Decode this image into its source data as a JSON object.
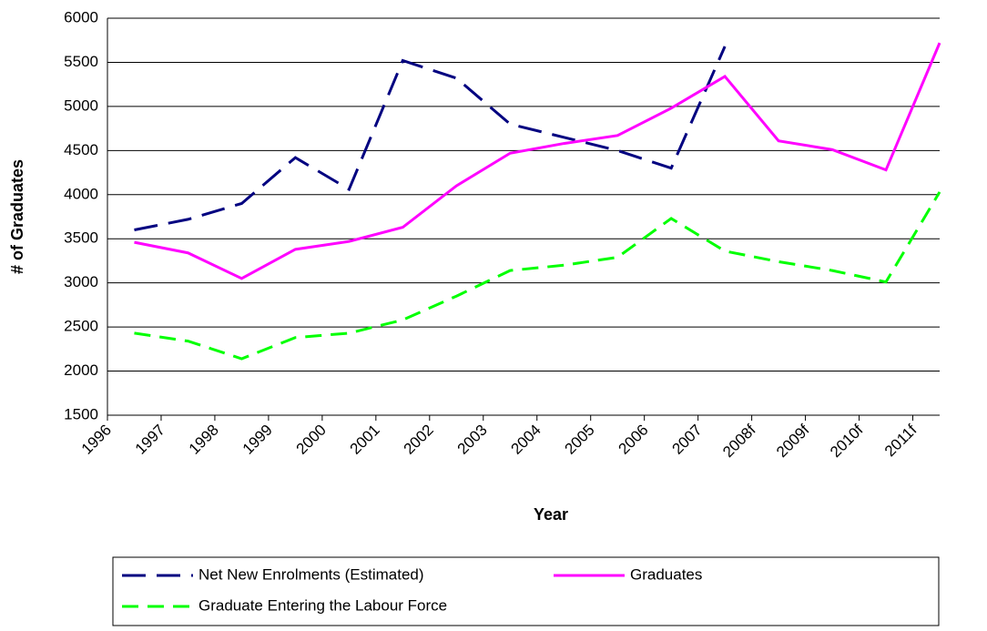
{
  "chart_data": {
    "type": "line",
    "x_label": "Year",
    "y_label": "# of Graduates",
    "categories": [
      "1996",
      "1997",
      "1998",
      "1999",
      "2000",
      "2001",
      "2002",
      "2003",
      "2004",
      "2005",
      "2006",
      "2007",
      "2008f",
      "2009f",
      "2010f",
      "2011f"
    ],
    "series": [
      {
        "name": "Net New Enrolments (Estimated)",
        "color": "#000080",
        "dash": "dashed",
        "values": [
          3600,
          3720,
          3900,
          4420,
          4060,
          5520,
          5320,
          4800,
          4650,
          4500,
          4300,
          5680,
          null,
          null,
          null,
          null
        ]
      },
      {
        "name": "Graduates",
        "color": "#ff00ff",
        "dash": "solid",
        "values": [
          3460,
          3340,
          3050,
          3380,
          3470,
          3630,
          4100,
          4470,
          4580,
          4670,
          4980,
          5340,
          4610,
          4510,
          4280,
          5720
        ]
      },
      {
        "name": "Graduate Entering the Labour Force",
        "color": "#00ff00",
        "dash": "dashed",
        "values": [
          2430,
          2340,
          2140,
          2380,
          2430,
          2580,
          2850,
          3140,
          3200,
          3290,
          3730,
          3360,
          3240,
          3140,
          3010,
          4030
        ]
      }
    ],
    "ylim": [
      1500,
      6000
    ],
    "yticks": [
      1500,
      2000,
      2500,
      3000,
      3500,
      4000,
      4500,
      5000,
      5500,
      6000
    ],
    "grid": true
  }
}
